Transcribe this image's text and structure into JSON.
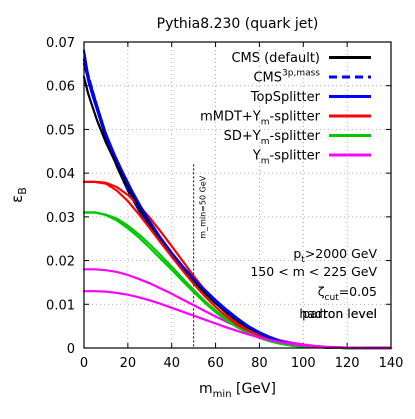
{
  "chart_data": {
    "type": "line",
    "title": "Pythia8.230 (quark jet)",
    "xlabel": "m_min [GeV]",
    "ylabel": "ε_B",
    "xlim": [
      0,
      140
    ],
    "ylim": [
      0,
      0.07
    ],
    "x_ticks": [
      "0",
      "20",
      "40",
      "60",
      "80",
      "100",
      "120",
      "140"
    ],
    "y_ticks": [
      "0",
      "0.01",
      "0.02",
      "0.03",
      "0.04",
      "0.05",
      "0.06",
      "0.07"
    ],
    "grid": true,
    "legend_position": "top-right",
    "annotations": {
      "cut_line_label": "m_min=50 GeV",
      "cut_line_x": 50,
      "text_lines": [
        "p_t>2000 GeV",
        "150 < m < 225 GeV",
        "ζ_cut=0.05",
        "parton level",
        "hadron level"
      ]
    },
    "series": [
      {
        "name": "CMS (default)",
        "color": "#000000",
        "style": "solid",
        "x": [
          0,
          5,
          10,
          15,
          20,
          25,
          30,
          35,
          40,
          45,
          50,
          55,
          60,
          65,
          70,
          75,
          80,
          85,
          90,
          95,
          100,
          110,
          120,
          130,
          140
        ],
        "y": [
          0.065,
          0.056,
          0.048,
          0.0415,
          0.036,
          0.0315,
          0.0277,
          0.0242,
          0.0211,
          0.0181,
          0.0154,
          0.0128,
          0.0104,
          0.0083,
          0.0063,
          0.0046,
          0.0033,
          0.0022,
          0.0014,
          0.0008,
          0.0004,
          0.0001,
          0.0,
          0.0,
          0.0
        ]
      },
      {
        "name": "CMS^{3p,mass}",
        "color": "#0000ff",
        "style": "dashed",
        "x": [
          0,
          5,
          10,
          15,
          20,
          25,
          30,
          35,
          40,
          45,
          50,
          55,
          60,
          65,
          70,
          75,
          80,
          85,
          90,
          95,
          100,
          110,
          120,
          130,
          140
        ],
        "y": [
          0.066,
          0.057,
          0.0485,
          0.0418,
          0.0362,
          0.0318,
          0.0279,
          0.0244,
          0.0213,
          0.0183,
          0.0156,
          0.013,
          0.0106,
          0.0085,
          0.0065,
          0.0048,
          0.0035,
          0.0024,
          0.0015,
          0.0009,
          0.0005,
          0.0001,
          0.0,
          0.0,
          0.0
        ]
      },
      {
        "name": "TopSplitter",
        "color": "#0000ff",
        "style": "solid",
        "x": [
          0,
          2,
          5,
          10,
          15,
          20,
          25,
          30,
          35,
          40,
          45,
          50,
          55,
          60,
          65,
          70,
          75,
          80,
          85,
          90,
          95,
          100,
          110,
          120,
          130,
          140
        ],
        "y": [
          0.068,
          0.062,
          0.057,
          0.049,
          0.0422,
          0.0366,
          0.0322,
          0.0283,
          0.0248,
          0.0217,
          0.0187,
          0.016,
          0.0134,
          0.011,
          0.0088,
          0.0068,
          0.005,
          0.0036,
          0.0025,
          0.0016,
          0.001,
          0.0005,
          0.0001,
          0.0,
          0.0,
          0.0
        ]
      },
      {
        "name": "mMDT+Y_m-splitter",
        "color": "#ff0000",
        "style": "solid",
        "x": [
          0,
          5,
          10,
          15,
          20,
          25,
          30,
          35,
          40,
          45,
          50,
          55,
          60,
          65,
          70,
          75,
          80,
          85,
          90,
          95,
          100,
          110,
          120,
          130,
          140
        ],
        "y": [
          0.038,
          0.038,
          0.0378,
          0.0368,
          0.035,
          0.0326,
          0.0298,
          0.0266,
          0.0233,
          0.0199,
          0.0165,
          0.0133,
          0.0104,
          0.0079,
          0.0058,
          0.0041,
          0.0028,
          0.0018,
          0.0011,
          0.0006,
          0.0003,
          0.0001,
          0.0,
          0.0,
          0.0
        ]
      },
      {
        "name": "SD+Y_m-splitter",
        "color": "#00c800",
        "style": "solid",
        "x": [
          0,
          5,
          10,
          15,
          20,
          25,
          30,
          35,
          40,
          45,
          50,
          55,
          60,
          65,
          70,
          75,
          80,
          85,
          90,
          95,
          100,
          110,
          120,
          130,
          140
        ],
        "y": [
          0.031,
          0.031,
          0.0305,
          0.0296,
          0.028,
          0.026,
          0.0237,
          0.0212,
          0.0186,
          0.0159,
          0.0133,
          0.0108,
          0.0086,
          0.0066,
          0.0049,
          0.0035,
          0.0024,
          0.0016,
          0.001,
          0.0006,
          0.0003,
          0.0001,
          0.0,
          0.0,
          0.0
        ]
      },
      {
        "name": "Y_m-splitter",
        "color": "#ff00ff",
        "style": "solid",
        "x": [
          0,
          5,
          10,
          15,
          20,
          25,
          30,
          35,
          40,
          45,
          50,
          55,
          60,
          65,
          70,
          75,
          80,
          85,
          90,
          95,
          100,
          105,
          110,
          115,
          120,
          130,
          140
        ],
        "y": [
          0.018,
          0.018,
          0.0178,
          0.0174,
          0.0167,
          0.0158,
          0.0148,
          0.0136,
          0.0124,
          0.0111,
          0.0098,
          0.0085,
          0.0072,
          0.006,
          0.0049,
          0.0039,
          0.003,
          0.0023,
          0.0017,
          0.0012,
          0.0008,
          0.0005,
          0.0003,
          0.0002,
          0.0001,
          0.0,
          0.0
        ]
      },
      {
        "name": "",
        "color": "#000000",
        "style": "solid",
        "x": [
          0,
          2,
          4,
          6,
          8,
          10,
          14,
          18,
          22,
          26,
          30,
          35,
          40,
          45,
          50,
          55,
          60,
          65,
          70,
          75,
          80,
          85,
          90,
          95,
          100,
          110,
          120,
          130,
          140
        ],
        "y": [
          0.062,
          0.058,
          0.055,
          0.052,
          0.0495,
          0.047,
          0.0428,
          0.0388,
          0.035,
          0.0316,
          0.0284,
          0.0246,
          0.0212,
          0.0181,
          0.0153,
          0.0126,
          0.0102,
          0.0081,
          0.0062,
          0.0046,
          0.0033,
          0.0022,
          0.0014,
          0.0008,
          0.0004,
          0.0001,
          0.0,
          0.0,
          0.0
        ]
      },
      {
        "name": "",
        "color": "#0000ff",
        "style": "solid",
        "x": [
          0,
          2,
          4,
          6,
          8,
          10,
          14,
          18,
          22,
          26,
          30,
          35,
          40,
          45,
          50,
          55,
          60,
          65,
          70,
          75,
          80,
          85,
          90,
          95,
          100,
          110,
          120,
          130,
          140
        ],
        "y": [
          0.066,
          0.061,
          0.0575,
          0.0545,
          0.0515,
          0.049,
          0.0442,
          0.0399,
          0.0359,
          0.0323,
          0.029,
          0.0252,
          0.0218,
          0.0187,
          0.0159,
          0.0132,
          0.0107,
          0.0085,
          0.0066,
          0.0049,
          0.0035,
          0.0024,
          0.0015,
          0.0009,
          0.0005,
          0.0001,
          0.0,
          0.0,
          0.0
        ]
      },
      {
        "name": "",
        "color": "#ff0000",
        "style": "solid",
        "x": [
          0,
          5,
          10,
          15,
          20,
          25,
          30,
          35,
          40,
          45,
          50,
          55,
          60,
          65,
          70,
          75,
          80,
          85,
          90,
          95,
          100,
          110,
          120,
          130,
          140
        ],
        "y": [
          0.038,
          0.038,
          0.0376,
          0.036,
          0.0336,
          0.0306,
          0.0274,
          0.0241,
          0.0209,
          0.0177,
          0.0147,
          0.0119,
          0.0094,
          0.0072,
          0.0053,
          0.0038,
          0.0026,
          0.0017,
          0.001,
          0.0006,
          0.0003,
          0.0001,
          0.0,
          0.0,
          0.0
        ]
      },
      {
        "name": "",
        "color": "#00c800",
        "style": "solid",
        "x": [
          0,
          5,
          10,
          15,
          20,
          25,
          30,
          35,
          40,
          45,
          50,
          55,
          60,
          65,
          70,
          75,
          80,
          85,
          90,
          95,
          100,
          110,
          120,
          130,
          140
        ],
        "y": [
          0.031,
          0.031,
          0.0304,
          0.0292,
          0.0274,
          0.0253,
          0.0229,
          0.0204,
          0.0179,
          0.0153,
          0.0128,
          0.0104,
          0.0082,
          0.0063,
          0.0047,
          0.0034,
          0.0023,
          0.0015,
          0.0009,
          0.0005,
          0.0003,
          0.0001,
          0.0,
          0.0,
          0.0
        ]
      },
      {
        "name": "",
        "color": "#ff00ff",
        "style": "solid",
        "x": [
          0,
          5,
          10,
          15,
          20,
          25,
          30,
          35,
          40,
          45,
          50,
          55,
          60,
          65,
          70,
          75,
          80,
          85,
          90,
          95,
          100,
          105,
          110,
          115,
          120,
          130,
          140
        ],
        "y": [
          0.013,
          0.013,
          0.0129,
          0.0126,
          0.0122,
          0.0116,
          0.0109,
          0.0101,
          0.0092,
          0.0083,
          0.0074,
          0.0065,
          0.0056,
          0.0047,
          0.0039,
          0.0031,
          0.0024,
          0.0018,
          0.0013,
          0.0009,
          0.0006,
          0.0004,
          0.0002,
          0.0001,
          0.0001,
          0.0,
          0.0
        ]
      }
    ]
  }
}
